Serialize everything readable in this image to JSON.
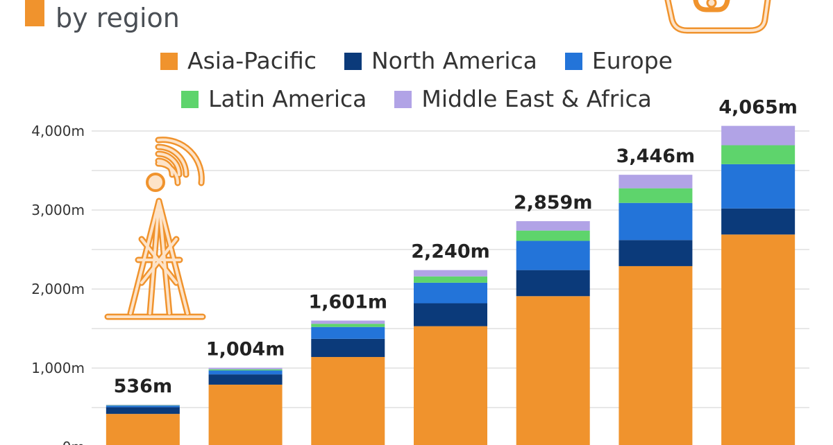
{
  "subtitle": "by region",
  "colors": {
    "asia_pacific": "#f0932d",
    "north_america": "#0b3a7a",
    "europe": "#2374d9",
    "latin_america": "#5ed46c",
    "middle_east_africa": "#b1a3e6",
    "grid": "#cfcfcf",
    "icon": "#f0932d"
  },
  "legend": [
    {
      "label": "Asia-Pacific",
      "color": "#f0932d"
    },
    {
      "label": "North America",
      "color": "#0b3a7a"
    },
    {
      "label": "Europe",
      "color": "#2374d9"
    },
    {
      "label": "Latin America",
      "color": "#5ed46c"
    },
    {
      "label": "Middle East & Africa",
      "color": "#b1a3e6"
    }
  ],
  "chart_data": {
    "type": "bar",
    "stacked": true,
    "ylim": [
      0,
      4000
    ],
    "yticks": [
      0,
      1000,
      2000,
      3000,
      4000
    ],
    "ytick_labels": [
      "0m",
      "1,000m",
      "2,000m",
      "3,000m",
      "4,000m"
    ],
    "grid": true,
    "legend_position": "top",
    "series": [
      {
        "name": "Asia-Pacific",
        "values": [
          420,
          790,
          1140,
          1530,
          1910,
          2290,
          2690
        ]
      },
      {
        "name": "North America",
        "values": [
          85,
          130,
          230,
          290,
          330,
          330,
          330
        ]
      },
      {
        "name": "Europe",
        "values": [
          20,
          50,
          150,
          260,
          370,
          470,
          560
        ]
      },
      {
        "name": "Latin America",
        "values": [
          5,
          15,
          40,
          80,
          130,
          185,
          240
        ]
      },
      {
        "name": "Middle East & Africa",
        "values": [
          6,
          19,
          41,
          80,
          119,
          171,
          245
        ]
      }
    ],
    "totals": [
      536,
      1004,
      1601,
      2240,
      2859,
      3446,
      4065
    ],
    "total_labels": [
      "536m",
      "1,004m",
      "1,601m",
      "2,240m",
      "2,859m",
      "3,446m",
      "4,065m"
    ]
  }
}
